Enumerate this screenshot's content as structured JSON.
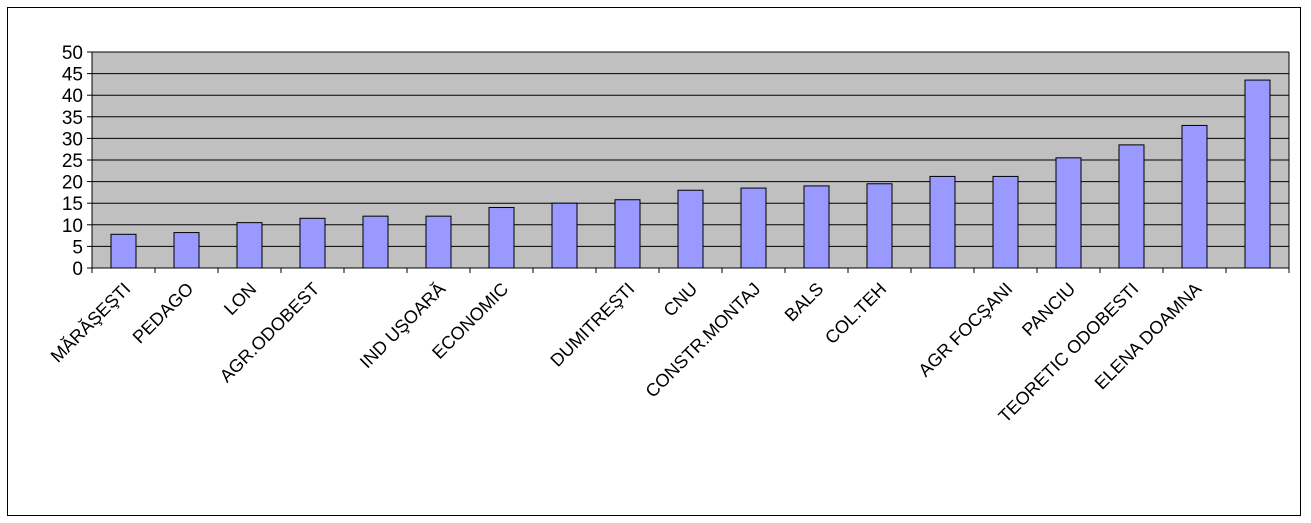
{
  "chart_data": {
    "type": "bar",
    "title": "",
    "xlabel": "",
    "ylabel": "",
    "ylim": [
      0,
      50
    ],
    "yticks": [
      0,
      5,
      10,
      15,
      20,
      25,
      30,
      35,
      40,
      45,
      50
    ],
    "grid": true,
    "legend": "none",
    "categories": [
      "MĂRĂŞEŞTI",
      "PEDAGO",
      "LON",
      "AGR.ODOBEST",
      "",
      "IND UŞOARĂ",
      "ECONOMIC",
      "",
      "DUMITREŞTI",
      "CNU",
      "CONSTR.MONTAJ",
      "BALS",
      "COL.TEH",
      "",
      "AGR FOCŞANI",
      "PANCIU",
      "TEORETIC ODOBESTI",
      "ELENA DOAMNA",
      ""
    ],
    "values": [
      7.8,
      8.2,
      10.5,
      11.5,
      12,
      12,
      14,
      15,
      15.8,
      18,
      18.5,
      19,
      19.5,
      21.2,
      21.2,
      25.5,
      28.5,
      33,
      43.5
    ],
    "colors": {
      "bar_fill": "#9999ff",
      "bar_stroke": "#000000",
      "plot_background": "#c0c0c0",
      "gridline": "#000000"
    }
  }
}
